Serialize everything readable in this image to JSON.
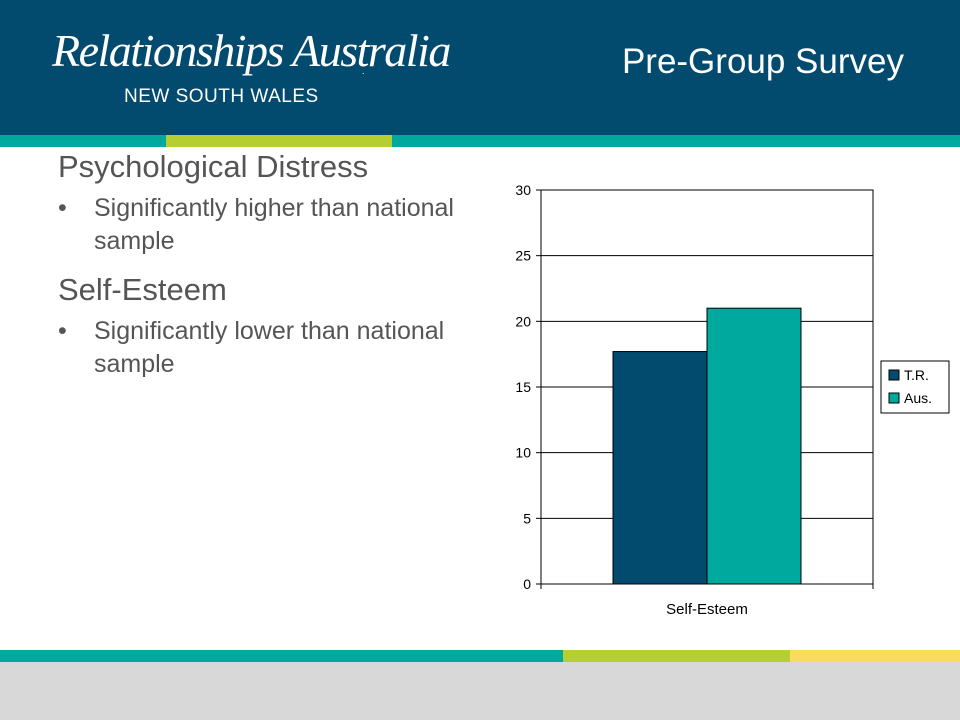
{
  "header": {
    "logo_text": "Relationships Australia",
    "logo_mark": ".",
    "logo_subtitle": "NEW SOUTH WALES",
    "title": "Pre-Group Survey"
  },
  "colors": {
    "navy": "#024a6e",
    "teal": "#00a99d",
    "lime": "#b4cf2f",
    "yellow": "#f9dc5c",
    "footer_gray": "#d8d8d8"
  },
  "sections": [
    {
      "heading": "Psychological Distress",
      "bullet": "Significantly higher than national sample"
    },
    {
      "heading": "Self-Esteem",
      "bullet": "Significantly lower than national sample"
    }
  ],
  "chart_data": {
    "type": "bar",
    "categories": [
      "Self-Esteem"
    ],
    "series": [
      {
        "name": "T.R.",
        "values": [
          17.7
        ],
        "color": "#024a6e"
      },
      {
        "name": "Aus.",
        "values": [
          21
        ],
        "color": "#00a99d"
      }
    ],
    "ylim": [
      0,
      30
    ],
    "yticks": [
      0,
      5,
      10,
      15,
      20,
      25,
      30
    ],
    "grid": true,
    "legend": "right"
  }
}
